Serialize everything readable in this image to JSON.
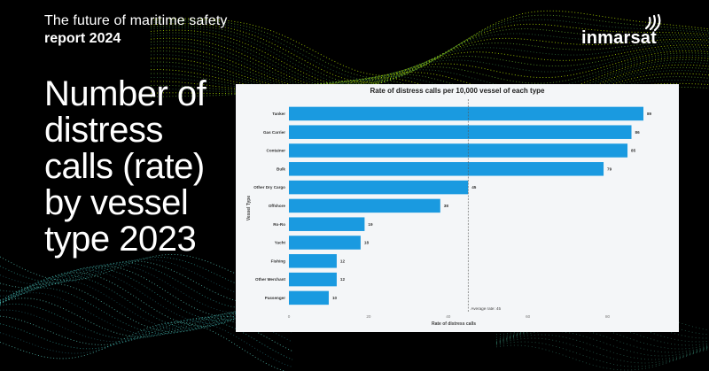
{
  "header": {
    "report_line1": "The future of maritime safety",
    "report_line2": "report 2024",
    "brand": "inmarsat"
  },
  "headline": {
    "lines": [
      "Number of",
      "distress",
      "calls (rate)",
      "by vessel",
      "type 2023"
    ]
  },
  "colors": {
    "bar": "#1a9ae0",
    "panel": "#f4f6f8",
    "background": "#000000",
    "accent_green": "#8fd400"
  },
  "icons": {
    "brand_mark": "broadcast-waves-icon"
  },
  "chart_data": {
    "type": "bar",
    "orientation": "horizontal",
    "title": "Rate of distress calls per 10,000 vessel of each type",
    "xlabel": "Rate of distress calls",
    "ylabel": "Vessel Type",
    "categories": [
      "Tanker",
      "Gas Carrier",
      "Container",
      "Bulk",
      "Other Dry Cargo",
      "Offshore",
      "Ro-Ro",
      "Yacht",
      "Fishing",
      "Other Merchant",
      "Passenger"
    ],
    "values": [
      89,
      86,
      85,
      79,
      45,
      38,
      19,
      18,
      12,
      12,
      10
    ],
    "xlim": [
      0,
      89
    ],
    "xticks": [
      0,
      20,
      40,
      60,
      80
    ],
    "reference_line": {
      "value": 45,
      "label": "Average rate: 45"
    },
    "grid": false
  }
}
